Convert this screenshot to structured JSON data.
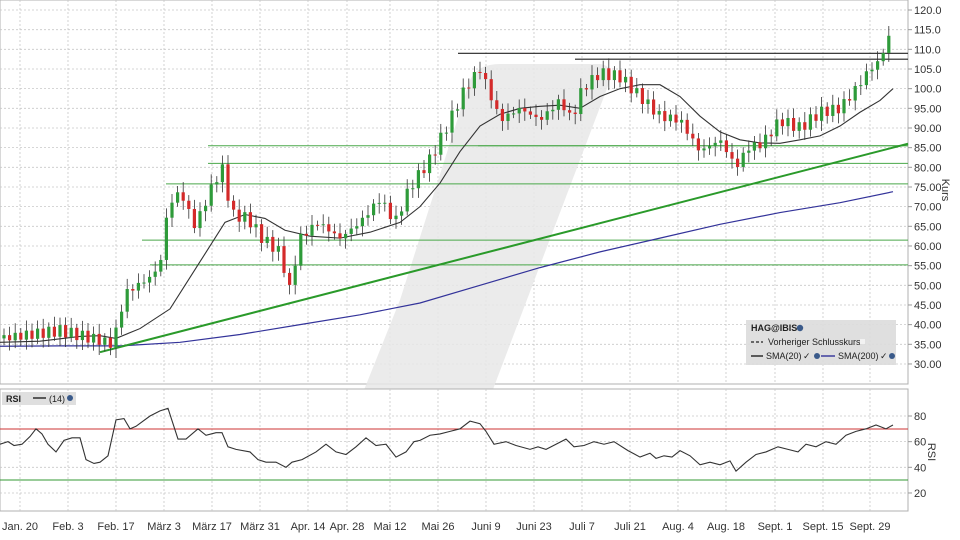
{
  "chart_data": [
    {
      "type": "candlestick",
      "title": "HAG@IBIS",
      "ylabel": "Kurs",
      "ylim": [
        27,
        122
      ],
      "y_ticks": [
        "120.0",
        "115.0",
        "110.0",
        "105.0",
        "100.0",
        "95.00",
        "90.00",
        "85.00",
        "80.00",
        "75.00",
        "70.00",
        "65.00",
        "60.00",
        "55.00",
        "50.00",
        "45.00",
        "40.00",
        "35.00",
        "30.00"
      ],
      "x_ticks": [
        "Jan. 20",
        "Feb. 3",
        "Feb. 17",
        "März 3",
        "März 17",
        "März 31",
        "Apr. 14",
        "Apr. 28",
        "Mai 12",
        "Mai 26",
        "Juni 9",
        "Juni 23",
        "Juli 7",
        "Juli 21",
        "Aug. 4",
        "Aug. 18",
        "Sept. 1",
        "Sept. 15",
        "Sept. 29"
      ],
      "grid": true,
      "legend": {
        "position": "bottom-right",
        "title": "HAG@IBIS",
        "entries": [
          "Vorheriger Schlusskurs",
          "SMA(20)",
          "SMA(200)"
        ]
      },
      "series": [
        {
          "name": "SMA(20)",
          "color": "#333333",
          "points": [
            [
              0,
              35.5
            ],
            [
              40,
              35.8
            ],
            [
              80,
              37
            ],
            [
              100,
              37.2
            ],
            [
              116,
              36.5
            ],
            [
              140,
              39
            ],
            [
              170,
              44
            ],
            [
              200,
              56
            ],
            [
              225,
              66
            ],
            [
              245,
              68
            ],
            [
              265,
              67
            ],
            [
              285,
              64
            ],
            [
              310,
              62.5
            ],
            [
              340,
              62
            ],
            [
              370,
              63.5
            ],
            [
              400,
              66
            ],
            [
              420,
              70
            ],
            [
              440,
              76
            ],
            [
              460,
              84
            ],
            [
              480,
              90.5
            ],
            [
              500,
              93.5
            ],
            [
              520,
              95
            ],
            [
              540,
              95.5
            ],
            [
              560,
              95.8
            ],
            [
              580,
              95
            ],
            [
              600,
              98
            ],
            [
              620,
              100
            ],
            [
              640,
              101
            ],
            [
              660,
              101
            ],
            [
              680,
              98
            ],
            [
              700,
              93
            ],
            [
              720,
              89
            ],
            [
              740,
              87
            ],
            [
              760,
              86.2
            ],
            [
              780,
              86.1
            ],
            [
              800,
              87
            ],
            [
              820,
              88
            ],
            [
              840,
              90.5
            ],
            [
              860,
              94
            ],
            [
              880,
              97
            ],
            [
              893,
              100
            ]
          ]
        },
        {
          "name": "SMA(200)",
          "color": "#33339a",
          "points": [
            [
              0,
              34.5
            ],
            [
              60,
              34.6
            ],
            [
              120,
              34.6
            ],
            [
              180,
              35.5
            ],
            [
              240,
              37.5
            ],
            [
              300,
              40
            ],
            [
              360,
              42.5
            ],
            [
              420,
              45.5
            ],
            [
              480,
              50
            ],
            [
              540,
              54.5
            ],
            [
              600,
              58.5
            ],
            [
              660,
              62
            ],
            [
              720,
              65.5
            ],
            [
              780,
              68.5
            ],
            [
              840,
              71
            ],
            [
              893,
              73.8
            ]
          ]
        },
        {
          "name": "Support trendline",
          "color": "#2a9a2a",
          "points": [
            [
              100,
              33
            ],
            [
              908,
              86
            ]
          ]
        },
        {
          "name": "Horizontal support/resistance levels (green)",
          "values": [
            85.5,
            81,
            75.8,
            61.5,
            55.2
          ]
        },
        {
          "name": "Horizontal resistance levels (black)",
          "values": [
            109,
            107.5
          ]
        }
      ],
      "candles_approx": [
        {
          "date": "Jan. 20",
          "close": 36.5
        },
        {
          "date": "Feb. 3",
          "close": 38
        },
        {
          "date": "Feb. 17",
          "close": 35
        },
        {
          "date": "März 3",
          "close": 62
        },
        {
          "date": "März 17",
          "close": 76
        },
        {
          "date": "März 31",
          "close": 64
        },
        {
          "date": "Apr. 3",
          "low": 45,
          "close": 61
        },
        {
          "date": "Apr. 14",
          "close": 62
        },
        {
          "date": "Apr. 28",
          "close": 63
        },
        {
          "date": "Mai 12",
          "close": 68
        },
        {
          "date": "Mai 26",
          "close": 83
        },
        {
          "date": "Juni 9",
          "high": 109,
          "close": 100
        },
        {
          "date": "Juni 23",
          "close": 93
        },
        {
          "date": "Juli 7",
          "high": 107,
          "close": 104
        },
        {
          "date": "Juli 21",
          "close": 100
        },
        {
          "date": "Aug. 4",
          "close": 88
        },
        {
          "date": "Aug. 18",
          "low": 76,
          "close": 82
        },
        {
          "date": "Sept. 1",
          "close": 86
        },
        {
          "date": "Sept. 15",
          "close": 95
        },
        {
          "date": "Sept. 29",
          "high": 116,
          "close": 114
        }
      ]
    },
    {
      "type": "line",
      "title": "RSI (14)",
      "ylabel": "RSI",
      "ylim": [
        10,
        90
      ],
      "y_ticks": [
        "80",
        "60",
        "40",
        "20"
      ],
      "overbought": 70,
      "oversold": 30,
      "overbought_color": "#cc3333",
      "oversold_color": "#339933",
      "series": [
        {
          "name": "RSI(14)",
          "color": "#333333",
          "points": [
            [
              0,
              58
            ],
            [
              8,
              60
            ],
            [
              14,
              57
            ],
            [
              22,
              58
            ],
            [
              30,
              64
            ],
            [
              36,
              70
            ],
            [
              42,
              66
            ],
            [
              48,
              58
            ],
            [
              56,
              52
            ],
            [
              64,
              61
            ],
            [
              72,
              63
            ],
            [
              80,
              63
            ],
            [
              86,
              46
            ],
            [
              94,
              43
            ],
            [
              100,
              44
            ],
            [
              108,
              49
            ],
            [
              116,
              77
            ],
            [
              124,
              78
            ],
            [
              130,
              70
            ],
            [
              136,
              72
            ],
            [
              150,
              80
            ],
            [
              160,
              84
            ],
            [
              168,
              86
            ],
            [
              178,
              62
            ],
            [
              186,
              62
            ],
            [
              198,
              70
            ],
            [
              206,
              65
            ],
            [
              216,
              67
            ],
            [
              222,
              67
            ],
            [
              228,
              56
            ],
            [
              236,
              54
            ],
            [
              250,
              52
            ],
            [
              258,
              46
            ],
            [
              266,
              44
            ],
            [
              276,
              44
            ],
            [
              286,
              40
            ],
            [
              292,
              44
            ],
            [
              302,
              46
            ],
            [
              316,
              52
            ],
            [
              326,
              58
            ],
            [
              336,
              52
            ],
            [
              346,
              50
            ],
            [
              356,
              56
            ],
            [
              366,
              63
            ],
            [
              376,
              57
            ],
            [
              386,
              58
            ],
            [
              396,
              48
            ],
            [
              406,
              52
            ],
            [
              414,
              60
            ],
            [
              420,
              61
            ],
            [
              430,
              65
            ],
            [
              440,
              66
            ],
            [
              450,
              68
            ],
            [
              460,
              70
            ],
            [
              470,
              76
            ],
            [
              480,
              74
            ],
            [
              486,
              68
            ],
            [
              494,
              58
            ],
            [
              506,
              60
            ],
            [
              516,
              57
            ],
            [
              530,
              54
            ],
            [
              538,
              56
            ],
            [
              546,
              54
            ],
            [
              556,
              58
            ],
            [
              566,
              62
            ],
            [
              574,
              56
            ],
            [
              584,
              57
            ],
            [
              594,
              60
            ],
            [
              604,
              58
            ],
            [
              614,
              60
            ],
            [
              628,
              53
            ],
            [
              640,
              48
            ],
            [
              650,
              51
            ],
            [
              656,
              47
            ],
            [
              664,
              49
            ],
            [
              672,
              48
            ],
            [
              680,
              53
            ],
            [
              690,
              49
            ],
            [
              700,
              42
            ],
            [
              710,
              44
            ],
            [
              720,
              42
            ],
            [
              730,
              45
            ],
            [
              736,
              37
            ],
            [
              746,
              44
            ],
            [
              756,
              50
            ],
            [
              766,
              52
            ],
            [
              778,
              56
            ],
            [
              788,
              54
            ],
            [
              798,
              52
            ],
            [
              806,
              58
            ],
            [
              816,
              56
            ],
            [
              826,
              60
            ],
            [
              836,
              58
            ],
            [
              846,
              65
            ],
            [
              856,
              68
            ],
            [
              866,
              70
            ],
            [
              876,
              73
            ],
            [
              886,
              70
            ],
            [
              893,
              73
            ]
          ]
        }
      ]
    }
  ],
  "main_panel": {
    "price_axis_label": "Kurs",
    "legend": {
      "title": "HAG@IBIS",
      "prev_close_label": "Vorheriger Schlusskurs",
      "sma20_label": "SMA(20)",
      "sma200_label": "SMA(200)"
    }
  },
  "rsi_panel": {
    "title": "RSI",
    "param_label": "(14)",
    "axis_label": "RSI"
  },
  "colors": {
    "up_candle": "#2e9b3a",
    "down_candle": "#d42a2a",
    "grid": "#c8c8c8",
    "watermark": "#e6e6e6",
    "legend_bg": "#dedede"
  }
}
